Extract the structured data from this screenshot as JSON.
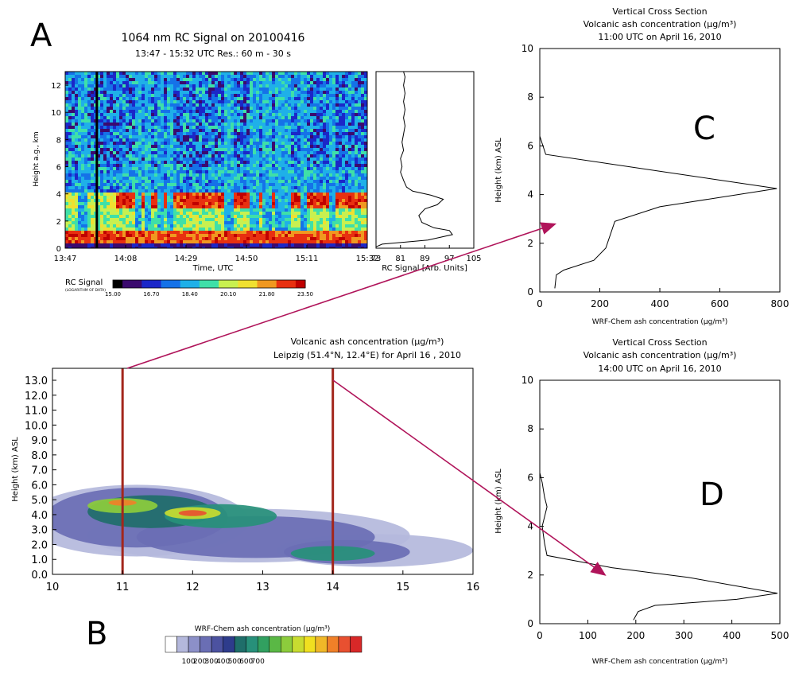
{
  "panel_labels": {
    "a": "A",
    "b": "B",
    "c": "C",
    "d": "D"
  },
  "colors": {
    "bg": "#ffffff",
    "arrow": "#b0145a",
    "marker": "#a3261c",
    "lidar_scale": [
      "#000000",
      "#3b0a6e",
      "#1b27c8",
      "#1572e8",
      "#1fb0e8",
      "#3fe0a8",
      "#c8f050",
      "#f0e030",
      "#f09820",
      "#e83010",
      "#c00000"
    ],
    "wrf_scale": [
      "#ffffff",
      "#b4b8dc",
      "#8c90c8",
      "#6a6eb4",
      "#4c52a0",
      "#2e3c8c",
      "#1f6e6a",
      "#27907a",
      "#31a060",
      "#5ab845",
      "#8ccc3c",
      "#c8dc30",
      "#f0e020",
      "#f0b828",
      "#f08028",
      "#e85030",
      "#d82828"
    ]
  },
  "chart_data": [
    {
      "id": "A-heatmap",
      "type": "heatmap",
      "title": "1064 nm RC Signal on  20100416",
      "subtitle": "13:47 - 15:32 UTC Res.:  60 m - 30 s",
      "xlabel": "Time, UTC",
      "ylabel": "Height a.g., km",
      "x_ticks": [
        "13:47",
        "14:08",
        "14:29",
        "14:50",
        "15:11",
        "15:32"
      ],
      "y_ticks": [
        "0",
        "2",
        "4",
        "6",
        "8",
        "10",
        "12"
      ],
      "ylim": [
        0,
        13
      ],
      "colorbar": {
        "label": "RC Signal",
        "sublabel": "(LOGARITHM OF DATA)",
        "ticks": [
          "15.00",
          "16.70",
          "18.40",
          "20.10",
          "21.80",
          "23.50"
        ]
      },
      "marker_time": "13:58"
    },
    {
      "id": "A-profile",
      "type": "line",
      "xlabel": "RC Signal [Arb. Units]",
      "x_ticks": [
        "73",
        "81",
        "89",
        "97",
        "105"
      ],
      "xlim": [
        73,
        105
      ],
      "ylim": [
        0,
        13
      ],
      "points": [
        [
          73,
          0.1
        ],
        [
          75,
          0.3
        ],
        [
          90,
          0.6
        ],
        [
          98,
          1.0
        ],
        [
          97,
          1.3
        ],
        [
          92,
          1.5
        ],
        [
          88,
          1.9
        ],
        [
          87,
          2.4
        ],
        [
          89,
          2.9
        ],
        [
          93,
          3.2
        ],
        [
          95,
          3.6
        ],
        [
          91,
          3.9
        ],
        [
          85,
          4.2
        ],
        [
          83,
          4.5
        ],
        [
          82,
          5.0
        ],
        [
          81,
          5.6
        ],
        [
          81.5,
          6.0
        ],
        [
          81,
          6.6
        ],
        [
          82,
          7.2
        ],
        [
          81.5,
          7.8
        ],
        [
          82,
          8.4
        ],
        [
          82.5,
          9.0
        ],
        [
          82,
          9.6
        ],
        [
          82.5,
          10.2
        ],
        [
          82,
          10.8
        ],
        [
          82.5,
          11.4
        ],
        [
          82,
          12.0
        ],
        [
          82.5,
          12.6
        ],
        [
          82,
          13.0
        ]
      ]
    },
    {
      "id": "B",
      "type": "heatmap",
      "title": "Volcanic ash concentration (µg/m³)",
      "subtitle": "Leipzig (51.4°N, 12.4°E)  for April 16 , 2010",
      "ylabel": "Height (km) ASL",
      "x_ticks": [
        "10",
        "11",
        "12",
        "13",
        "14",
        "15",
        "16"
      ],
      "xlim": [
        10,
        16
      ],
      "y_ticks": [
        "0.0",
        "1.0",
        "2.0",
        "3.0",
        "4.0",
        "5.0",
        "6.0",
        "7.0",
        "8.0",
        "9.0",
        "10.0",
        "11.0",
        "12.0",
        "13.0"
      ],
      "ylim": [
        0,
        13.8
      ],
      "markers_x": [
        11,
        14
      ],
      "colorbar": {
        "label": "WRF-Chem ash concentration (µg/m³)",
        "ticks": [
          "100",
          "200",
          "300",
          "400",
          "500",
          "600",
          "700"
        ]
      }
    },
    {
      "id": "C",
      "type": "line",
      "title": "Vertical Cross Section",
      "subtitle": "Volcanic ash concentration (µg/m³)",
      "time": "11:00 UTC on April 16, 2010",
      "xlabel": "WRF-Chem ash concentration (µg/m³)",
      "ylabel": "Height (km) ASL",
      "x_ticks": [
        "0",
        "200",
        "400",
        "600",
        "800"
      ],
      "xlim": [
        0,
        800
      ],
      "y_ticks": [
        "0",
        "2",
        "4",
        "6",
        "8",
        "10"
      ],
      "ylim": [
        0,
        10
      ],
      "x": [
        50,
        55,
        80,
        180,
        220,
        250,
        400,
        790,
        20,
        0
      ],
      "y": [
        0.15,
        0.7,
        0.9,
        1.3,
        1.8,
        2.9,
        3.5,
        4.25,
        5.65,
        6.4
      ]
    },
    {
      "id": "D",
      "type": "line",
      "title": "Vertical Cross Section",
      "subtitle": "Volcanic ash concentration (µg/m³)",
      "time": "14:00 UTC on April 16, 2010",
      "xlabel": "WRF-Chem ash concentration (µg/m³)",
      "ylabel": "Height (km) ASL",
      "x_ticks": [
        "0",
        "100",
        "200",
        "300",
        "400",
        "500"
      ],
      "xlim": [
        0,
        500
      ],
      "y_ticks": [
        "0",
        "2",
        "4",
        "6",
        "8",
        "10"
      ],
      "ylim": [
        0,
        10
      ],
      "x": [
        195,
        205,
        240,
        410,
        495,
        310,
        150,
        15,
        10,
        5,
        15,
        10,
        5,
        0
      ],
      "y": [
        0.15,
        0.5,
        0.75,
        1.0,
        1.25,
        1.9,
        2.3,
        2.8,
        3.3,
        4.0,
        4.8,
        5.2,
        5.8,
        6.2
      ]
    }
  ]
}
